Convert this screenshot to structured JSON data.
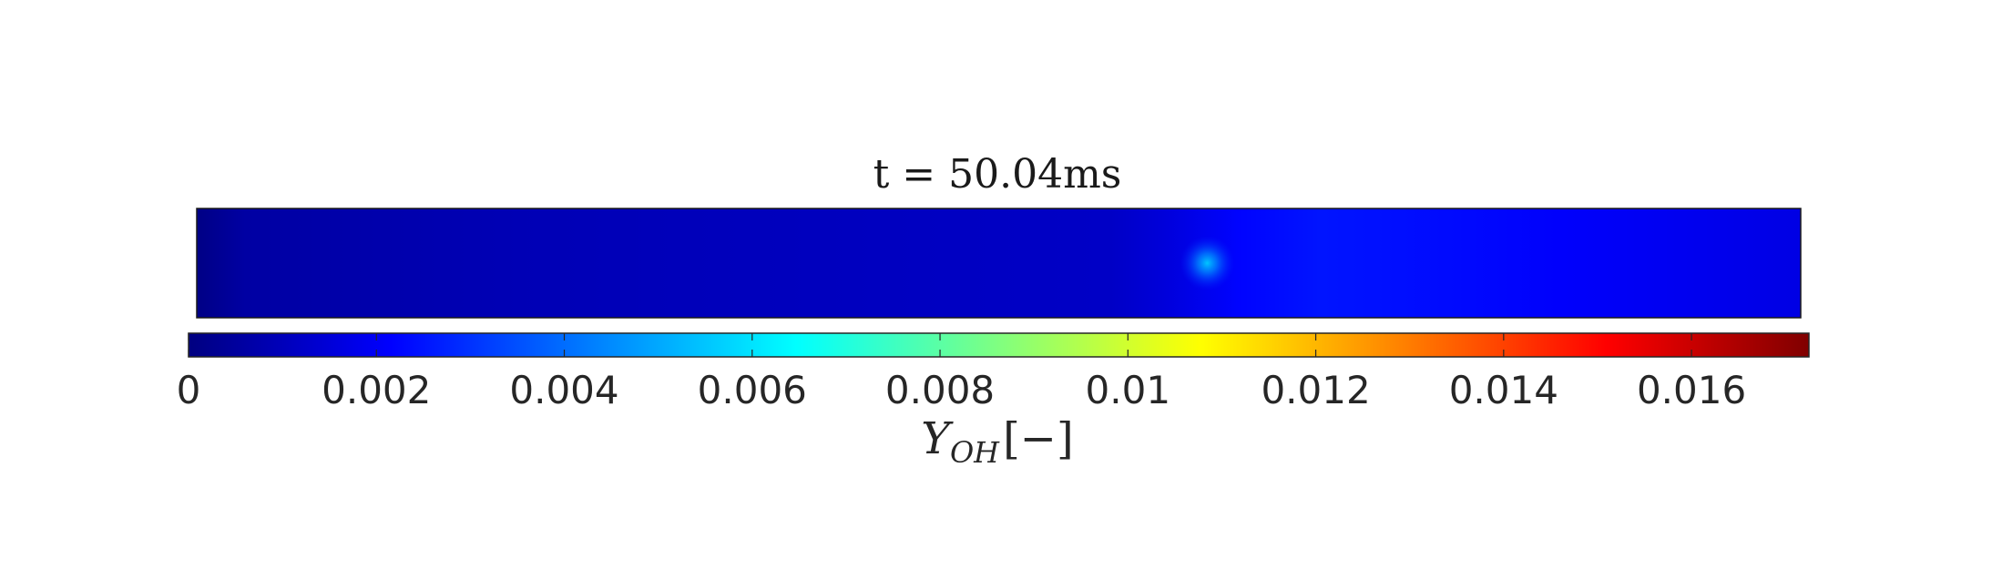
{
  "chart_data": {
    "type": "heatmap",
    "title": "t = 50.04ms",
    "field": "OH mass fraction",
    "colormap": "jet",
    "clim": [
      0,
      0.01725
    ],
    "colorbar": {
      "orientation": "horizontal",
      "location": "below",
      "ticks": [
        0,
        0.002,
        0.004,
        0.006,
        0.008,
        0.01,
        0.012,
        0.014,
        0.016
      ],
      "tick_labels": [
        "0",
        "0.002",
        "0.004",
        "0.006",
        "0.008",
        "0.01",
        "0.012",
        "0.014",
        "0.016"
      ],
      "label_main": "Y",
      "label_sub": "OH",
      "label_units": "[−]"
    },
    "domain_profile": {
      "x_fraction": [
        0,
        0.03,
        0.2,
        0.45,
        0.57,
        0.6,
        0.65,
        0.7,
        0.75,
        0.85,
        1
      ],
      "value": [
        0.0001,
        0.0006,
        0.0009,
        0.0011,
        0.0012,
        0.0015,
        0.0022,
        0.0025,
        0.0024,
        0.0021,
        0.0017
      ]
    },
    "hotspot": {
      "x_fraction": 0.63,
      "y_fraction": 0.5,
      "peak_value": 0.0055
    },
    "colors": {
      "frame": "#1a1a1a",
      "background": "#ffffff"
    }
  }
}
